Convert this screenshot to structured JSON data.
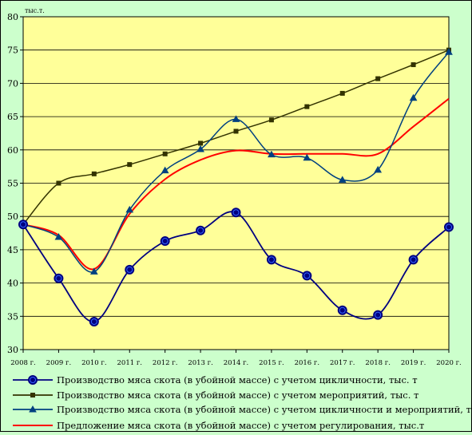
{
  "chart_data": {
    "type": "line",
    "unit_label": "тыс.т.",
    "categories": [
      "2008 г.",
      "2009 г.",
      "2010 г.",
      "2011 г.",
      "2012 г.",
      "2013 г.",
      "2014 г.",
      "2015 г.",
      "2016 г.",
      "2017 г.",
      "2018 г.",
      "2019 г.",
      "2020 г."
    ],
    "ylim": [
      30,
      80
    ],
    "yticks": [
      30,
      35,
      40,
      45,
      50,
      55,
      60,
      65,
      70,
      75,
      80
    ],
    "grid": "horizontal",
    "legend_position": "bottom",
    "colors": {
      "figure_background": "#ccffcc",
      "plot_background": "#ffff99",
      "gridline": "#000000"
    },
    "series": [
      {
        "name": "Производство мяса скота (в убойной массе) с учетом цикличности, тыс. т",
        "color": "#000080",
        "marker": "circle-large",
        "values": [
          48.8,
          40.7,
          34.2,
          42.0,
          46.3,
          47.9,
          50.6,
          43.5,
          41.1,
          35.9,
          35.2,
          43.5,
          48.4
        ]
      },
      {
        "name": "Производство мяса скота (в убойной массе) с учетом мероприятий, тыс. т",
        "color": "#333300",
        "marker": "square",
        "values": [
          48.8,
          55.0,
          56.4,
          57.8,
          59.4,
          61.0,
          62.8,
          64.5,
          66.5,
          68.5,
          70.7,
          72.8,
          75.0
        ]
      },
      {
        "name": "Производство мяса скота (в убойной массе) с учетом цикличности и мероприятий, тыс. т",
        "color": "#004080",
        "marker": "triangle",
        "values": [
          48.8,
          46.9,
          41.7,
          51.0,
          56.9,
          60.1,
          64.6,
          59.3,
          58.8,
          55.5,
          57.0,
          67.8,
          74.7
        ]
      },
      {
        "name": "Предложение мяса скота (в убойной массе) с учетом регулирования, тыс.т",
        "color": "#ff0000",
        "marker": "none",
        "values": [
          48.8,
          47.2,
          42.1,
          50.4,
          55.6,
          58.5,
          59.9,
          59.4,
          59.4,
          59.4,
          59.4,
          63.5,
          67.7
        ]
      }
    ]
  }
}
